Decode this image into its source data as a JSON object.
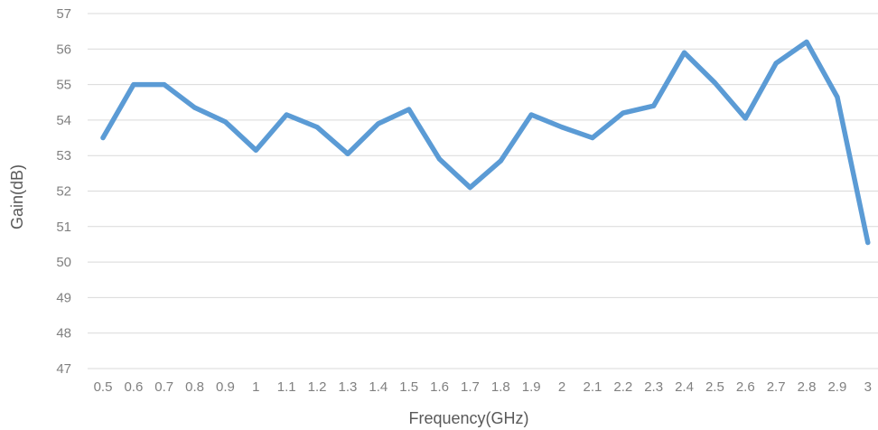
{
  "chart_data": {
    "type": "line",
    "title": "",
    "xlabel": "Frequency(GHz)",
    "ylabel": "Gain(dB)",
    "x": [
      "0.5",
      "0.6",
      "0.7",
      "0.8",
      "0.9",
      "1",
      "1.1",
      "1.2",
      "1.3",
      "1.4",
      "1.5",
      "1.6",
      "1.7",
      "1.8",
      "1.9",
      "2",
      "2.1",
      "2.2",
      "2.3",
      "2.4",
      "2.5",
      "2.6",
      "2.7",
      "2.8",
      "2.9",
      "3"
    ],
    "series": [
      {
        "values": [
          53.5,
          55.0,
          55.0,
          54.35,
          53.95,
          53.15,
          54.15,
          53.8,
          53.05,
          53.9,
          54.3,
          52.9,
          52.1,
          52.85,
          54.15,
          53.8,
          53.5,
          54.2,
          54.4,
          55.9,
          55.05,
          54.05,
          55.6,
          56.2,
          54.65,
          50.55
        ],
        "color": "#5B9BD5"
      }
    ],
    "ylim": [
      47,
      57
    ],
    "yticks": [
      "47",
      "48",
      "49",
      "50",
      "51",
      "52",
      "53",
      "54",
      "55",
      "56",
      "57"
    ],
    "grid": true,
    "legend": "none"
  }
}
